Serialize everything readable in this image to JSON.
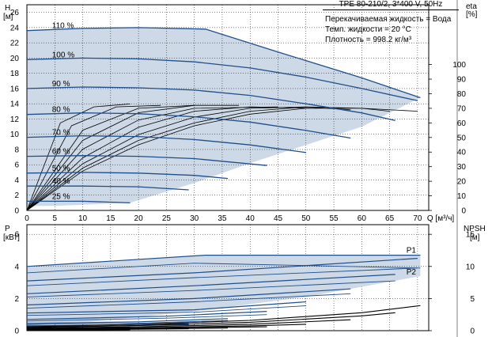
{
  "header": {
    "title": "TPE 80-210/2, 3*400 V, 50Hz",
    "eta_label": "eta",
    "eta_unit": "[%]"
  },
  "info": {
    "liquid": "Перекачиваемая жидкость = Вода",
    "temperature": "Темп. жидкости = 20 °C",
    "density": "Плотность = 998.2 кг/м³"
  },
  "colors": {
    "curve": "#1f4e8c",
    "fill": "#cdd9e6",
    "grid": "#000000"
  },
  "chart_data": [
    {
      "type": "line",
      "name": "head",
      "ylabel_top": "H",
      "ylabel_unit": "[м]",
      "xlabel": "Q [м³/ч]",
      "xlim": [
        0,
        72
      ],
      "ylim": [
        0,
        27
      ],
      "x_ticks": [
        0,
        5,
        10,
        15,
        20,
        25,
        30,
        35,
        40,
        45,
        50,
        55,
        60,
        65,
        70
      ],
      "y_ticks": [
        0,
        2,
        4,
        6,
        8,
        10,
        12,
        14,
        16,
        18,
        20,
        22,
        24,
        26
      ],
      "eta_ticks": [
        0,
        10,
        20,
        30,
        40,
        50,
        60,
        70,
        80,
        90,
        100
      ],
      "eta_lim": [
        0,
        141
      ],
      "speed_curves": [
        {
          "label": "110 %",
          "x": [
            0,
            10,
            20,
            32,
            45,
            60,
            70.5
          ],
          "y": [
            23.6,
            23.9,
            24.0,
            23.8,
            20.8,
            17.4,
            14.8
          ]
        },
        {
          "label": "100 %",
          "x": [
            0,
            10,
            20,
            30,
            40,
            50,
            60,
            70
          ],
          "y": [
            19.8,
            20.0,
            19.9,
            19.5,
            18.7,
            17.5,
            16.0,
            14.4
          ]
        },
        {
          "label": "90 %",
          "x": [
            0,
            10,
            20,
            30,
            40,
            50,
            60,
            66
          ],
          "y": [
            16.0,
            16.2,
            16.1,
            15.8,
            15.1,
            14.0,
            12.8,
            11.8
          ]
        },
        {
          "label": "80 %",
          "x": [
            0,
            10,
            20,
            30,
            40,
            50,
            58
          ],
          "y": [
            12.6,
            12.8,
            12.7,
            12.3,
            11.6,
            10.5,
            9.5
          ]
        },
        {
          "label": "70 %",
          "x": [
            0,
            10,
            20,
            30,
            40,
            50
          ],
          "y": [
            9.6,
            9.8,
            9.7,
            9.3,
            8.6,
            7.6
          ]
        },
        {
          "label": "60 %",
          "x": [
            0,
            10,
            20,
            30,
            43
          ],
          "y": [
            7.1,
            7.2,
            7.1,
            6.8,
            5.9
          ]
        },
        {
          "label": "50 %",
          "x": [
            0,
            10,
            20,
            30,
            36
          ],
          "y": [
            4.9,
            5.0,
            4.9,
            4.6,
            4.2
          ]
        },
        {
          "label": "40 %",
          "x": [
            0,
            10,
            20,
            29
          ],
          "y": [
            3.2,
            3.2,
            3.1,
            2.7
          ]
        },
        {
          "label": "25 %",
          "x": [
            0,
            10,
            18.5
          ],
          "y": [
            1.2,
            1.2,
            1.0
          ]
        }
      ],
      "envelope": {
        "x": [
          0,
          10,
          20,
          32,
          45,
          60,
          70.5,
          60,
          50,
          40,
          30,
          18.5,
          5,
          0
        ],
        "y": [
          23.6,
          23.9,
          24.0,
          23.8,
          20.8,
          17.4,
          14.8,
          11.0,
          8.6,
          6.2,
          3.6,
          1.0,
          0.6,
          0.6
        ]
      },
      "efficiency_curves": [
        {
          "x": [
            0,
            10,
            20,
            30,
            40,
            50,
            60,
            70
          ],
          "y": [
            0,
            27,
            45,
            58,
            66,
            70,
            70,
            68
          ]
        },
        {
          "x": [
            0,
            10,
            20,
            30,
            40,
            50,
            60,
            65
          ],
          "y": [
            0,
            29,
            48,
            60,
            68,
            71,
            70,
            68
          ]
        },
        {
          "x": [
            0,
            10,
            20,
            30,
            40,
            50,
            58
          ],
          "y": [
            0,
            32,
            52,
            64,
            70,
            71,
            69
          ]
        },
        {
          "x": [
            0,
            10,
            20,
            30,
            40,
            52
          ],
          "y": [
            0,
            36,
            57,
            68,
            71,
            70
          ]
        },
        {
          "x": [
            0,
            10,
            20,
            30,
            45
          ],
          "y": [
            0,
            42,
            62,
            70,
            71
          ]
        },
        {
          "x": [
            0,
            10,
            20,
            30,
            38
          ],
          "y": [
            0,
            48,
            67,
            72,
            72
          ]
        },
        {
          "x": [
            0,
            10,
            20,
            30
          ],
          "y": [
            0,
            55,
            70,
            72
          ]
        },
        {
          "x": [
            0,
            8,
            16,
            24
          ],
          "y": [
            0,
            58,
            71,
            72
          ]
        },
        {
          "x": [
            0,
            6,
            12,
            18.5
          ],
          "y": [
            0,
            60,
            71,
            73
          ]
        }
      ]
    },
    {
      "type": "line",
      "name": "power",
      "ylabel_top": "P",
      "ylabel_unit": "[кВт]",
      "xlim": [
        0,
        72
      ],
      "ylim": [
        0,
        6.6
      ],
      "y_ticks": [
        0,
        2,
        4,
        6
      ],
      "npsh_label": "NPSH",
      "npsh_unit": "[м]",
      "npsh_ticks": [
        0,
        5,
        10,
        15
      ],
      "npsh_lim": [
        0,
        16.5
      ],
      "series_labels": [
        "P1",
        "P2"
      ],
      "p1_curves": [
        {
          "x": [
            0,
            32,
            70.5
          ],
          "y": [
            4.0,
            4.7,
            4.7
          ]
        },
        {
          "x": [
            0,
            30,
            70
          ],
          "y": [
            3.1,
            3.6,
            4.5
          ]
        },
        {
          "x": [
            0,
            30,
            66
          ],
          "y": [
            2.3,
            2.8,
            3.5
          ]
        },
        {
          "x": [
            0,
            30,
            58
          ],
          "y": [
            1.6,
            2.0,
            2.6
          ]
        },
        {
          "x": [
            0,
            30,
            50
          ],
          "y": [
            1.1,
            1.3,
            1.8
          ]
        },
        {
          "x": [
            0,
            25,
            43
          ],
          "y": [
            0.7,
            0.9,
            1.2
          ]
        },
        {
          "x": [
            0,
            20,
            36
          ],
          "y": [
            0.45,
            0.55,
            0.75
          ]
        },
        {
          "x": [
            0,
            15,
            29
          ],
          "y": [
            0.3,
            0.35,
            0.45
          ]
        },
        {
          "x": [
            0,
            10,
            18.5
          ],
          "y": [
            0.15,
            0.18,
            0.22
          ]
        }
      ],
      "p2_curves": [
        {
          "x": [
            0,
            30,
            70.5
          ],
          "y": [
            3.6,
            4.2,
            3.9
          ]
        },
        {
          "x": [
            0,
            30,
            70
          ],
          "y": [
            2.8,
            3.3,
            3.9
          ]
        },
        {
          "x": [
            0,
            30,
            66
          ],
          "y": [
            2.1,
            2.5,
            3.1
          ]
        },
        {
          "x": [
            0,
            30,
            58
          ],
          "y": [
            1.4,
            1.8,
            2.3
          ]
        },
        {
          "x": [
            0,
            30,
            50
          ],
          "y": [
            0.95,
            1.15,
            1.55
          ]
        },
        {
          "x": [
            0,
            25,
            43
          ],
          "y": [
            0.6,
            0.78,
            1.0
          ]
        },
        {
          "x": [
            0,
            20,
            36
          ],
          "y": [
            0.38,
            0.47,
            0.63
          ]
        },
        {
          "x": [
            0,
            15,
            29
          ],
          "y": [
            0.24,
            0.29,
            0.37
          ]
        },
        {
          "x": [
            0,
            10,
            18.5
          ],
          "y": [
            0.12,
            0.14,
            0.18
          ]
        }
      ],
      "npsh_curves": [
        {
          "x": [
            0,
            20,
            40,
            60,
            70.5
          ],
          "y": [
            0.6,
            1.0,
            1.6,
            2.8,
            3.9
          ]
        },
        {
          "x": [
            0,
            20,
            40,
            60,
            66
          ],
          "y": [
            0.5,
            0.8,
            1.3,
            2.3,
            2.8
          ]
        },
        {
          "x": [
            0,
            20,
            40,
            58
          ],
          "y": [
            0.4,
            0.6,
            1.0,
            1.7
          ]
        },
        {
          "x": [
            0,
            20,
            40,
            50
          ],
          "y": [
            0.3,
            0.45,
            0.75,
            1.0
          ]
        },
        {
          "x": [
            0,
            20,
            43
          ],
          "y": [
            0.25,
            0.35,
            0.6
          ]
        },
        {
          "x": [
            0,
            20,
            36
          ],
          "y": [
            0.2,
            0.28,
            0.42
          ]
        },
        {
          "x": [
            0,
            15,
            29
          ],
          "y": [
            0.15,
            0.2,
            0.3
          ]
        },
        {
          "x": [
            0,
            10,
            18.5
          ],
          "y": [
            0.1,
            0.12,
            0.15
          ]
        }
      ],
      "envelope": {
        "x": [
          0,
          32,
          70.5,
          70.5,
          50,
          30,
          10,
          0
        ],
        "y": [
          4.0,
          4.7,
          4.7,
          3.4,
          2.1,
          1.2,
          0.5,
          0.3
        ]
      }
    }
  ]
}
